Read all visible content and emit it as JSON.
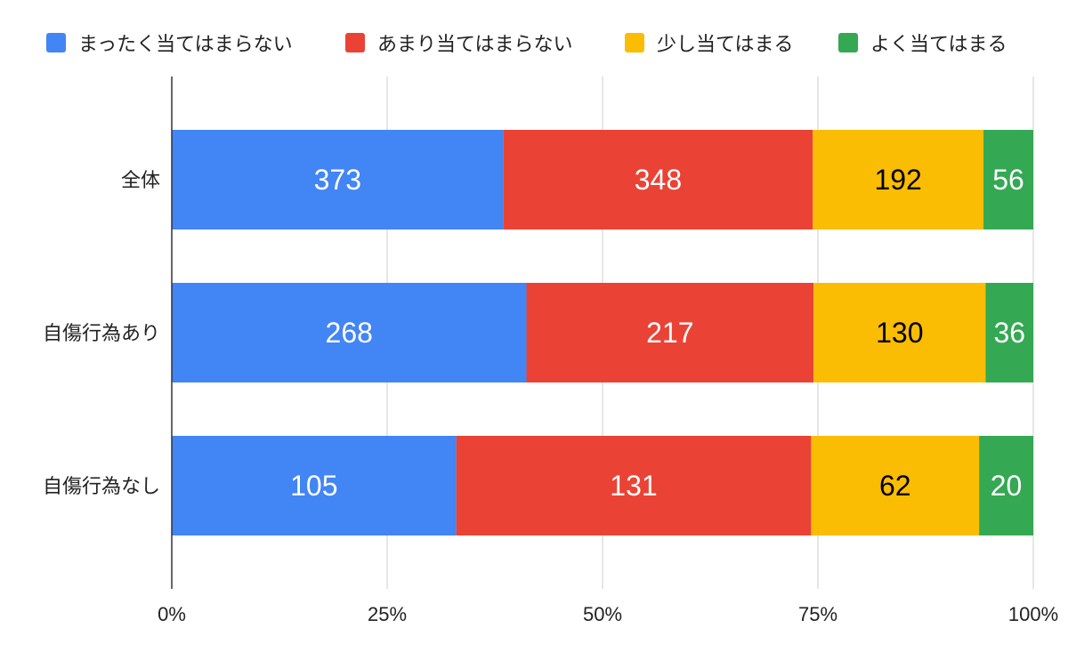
{
  "chart_data": {
    "type": "bar",
    "orientation": "horizontal",
    "stacked": "percent",
    "categories": [
      "全体",
      "自傷行為あり",
      "自傷行為なし"
    ],
    "series": [
      {
        "name": "まったく当てはまらない",
        "color": "#4285F4",
        "label_color": "#ffffff",
        "values": [
          373,
          268,
          105
        ]
      },
      {
        "name": "あまり当てはまらない",
        "color": "#EA4335",
        "label_color": "#ffffff",
        "values": [
          348,
          217,
          131
        ]
      },
      {
        "name": "少し当てはまる",
        "color": "#FBBC04",
        "label_color": "#000000",
        "values": [
          192,
          130,
          62
        ]
      },
      {
        "name": "よく当てはまる",
        "color": "#34A853",
        "label_color": "#ffffff",
        "values": [
          56,
          36,
          20
        ]
      }
    ],
    "x_ticks": [
      "0%",
      "25%",
      "50%",
      "75%",
      "100%"
    ],
    "xlim": [
      0,
      100
    ],
    "grid": true,
    "legend_position": "top",
    "title": "",
    "xlabel": "",
    "ylabel": ""
  }
}
